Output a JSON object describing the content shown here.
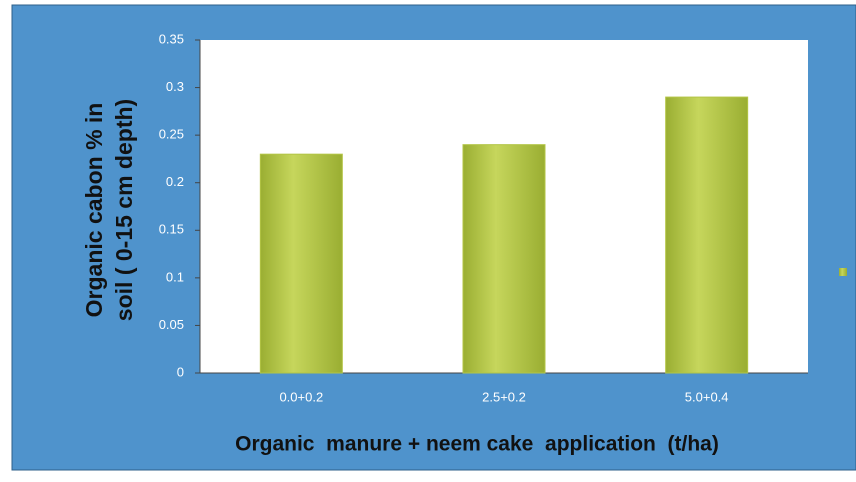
{
  "chart_data": {
    "type": "bar",
    "y_label": [
      "Organic cabon % in",
      "soil ( 0-15 cm depth)"
    ],
    "x_label": "Organic  manure + neem cake  application  (t/ha)",
    "categories": [
      "0.0+0.2",
      "2.5+0.2",
      "5.0+0.4"
    ],
    "values": [
      0.23,
      0.24,
      0.29
    ],
    "color": "#b3c545",
    "ylim": [
      0,
      0.35
    ],
    "yticks": [
      0,
      0.05,
      0.1,
      0.15,
      0.2,
      0.25,
      0.3,
      0.35
    ],
    "grid": false
  }
}
